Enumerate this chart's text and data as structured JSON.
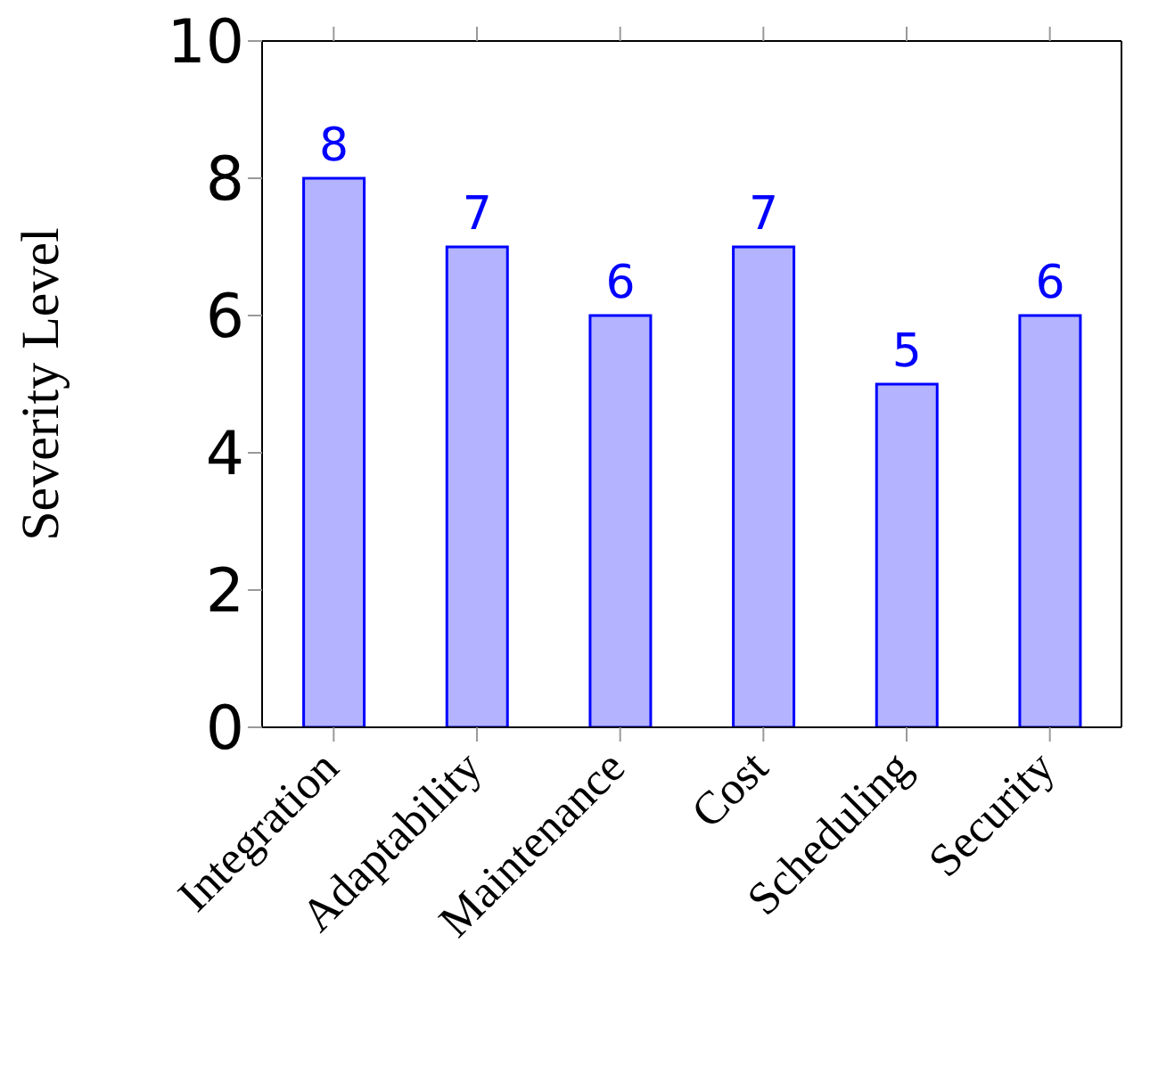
{
  "chart_data": {
    "type": "bar",
    "ylabel": "Severity Level",
    "categories": [
      "Integration",
      "Adaptability",
      "Maintenance",
      "Cost",
      "Scheduling",
      "Security"
    ],
    "values": [
      8,
      7,
      6,
      7,
      5,
      6
    ],
    "color": "#b3b3ff",
    "ylim": [
      0,
      10
    ],
    "yticks": [
      0,
      2,
      4,
      6,
      8,
      10
    ],
    "grid": false,
    "data_labels": true
  }
}
